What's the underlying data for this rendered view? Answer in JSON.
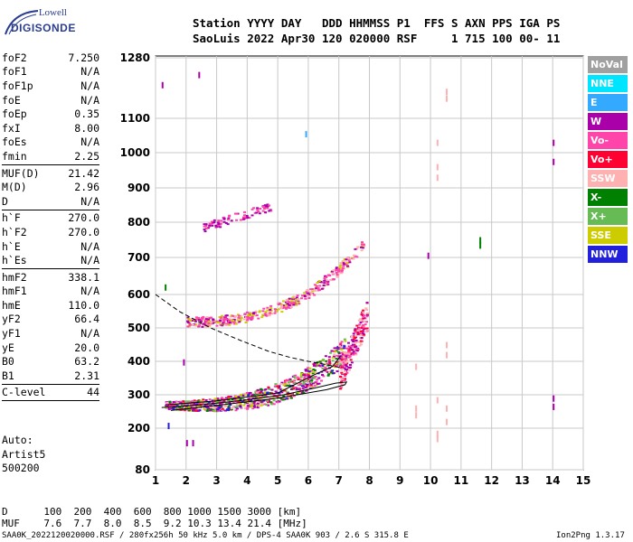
{
  "logo": {
    "top": "Lowell",
    "main": "DIGISONDE"
  },
  "header": {
    "line1": "Station YYYY DAY   DDD HHMMSS P1  FFS S AXN PPS IGA PS",
    "line2": "SaoLuis 2022 Apr30 120 020000 RSF     1 715 100 00- 11"
  },
  "params": [
    {
      "name": "foF2",
      "value": "7.250"
    },
    {
      "name": "foF1",
      "value": "N/A"
    },
    {
      "name": "foF1p",
      "value": "N/A"
    },
    {
      "name": "foE",
      "value": "N/A"
    },
    {
      "name": "foEp",
      "value": "0.35"
    },
    {
      "name": "fxI",
      "value": "8.00"
    },
    {
      "name": "foEs",
      "value": "N/A"
    },
    {
      "name": "fmin",
      "value": "2.25"
    },
    {
      "sep": true
    },
    {
      "name": "MUF(D)",
      "value": "21.42"
    },
    {
      "name": "M(D)",
      "value": "2.96"
    },
    {
      "name": "D",
      "value": "N/A"
    },
    {
      "sep": true
    },
    {
      "name": "h`F",
      "value": "270.0"
    },
    {
      "name": "h`F2",
      "value": "270.0"
    },
    {
      "name": "h`E",
      "value": "N/A"
    },
    {
      "name": "h`Es",
      "value": "N/A"
    },
    {
      "sep": true
    },
    {
      "name": "hmF2",
      "value": "338.1"
    },
    {
      "name": "hmF1",
      "value": "N/A"
    },
    {
      "name": "hmE",
      "value": "110.0"
    },
    {
      "name": "yF2",
      "value": "66.4"
    },
    {
      "name": "yF1",
      "value": "N/A"
    },
    {
      "name": "yE",
      "value": "20.0"
    },
    {
      "name": "B0",
      "value": "63.2"
    },
    {
      "name": "B1",
      "value": "2.31"
    },
    {
      "sep": true
    },
    {
      "name": "C-level",
      "value": "44"
    },
    {
      "sep": true
    }
  ],
  "auto": {
    "l1": "Auto:",
    "l2": "Artist5",
    "l3": "500200"
  },
  "legend": [
    {
      "label": "NoVal",
      "color": "#a0a0a0"
    },
    {
      "label": "NNE",
      "color": "#00e5ff"
    },
    {
      "label": "E",
      "color": "#33aaff"
    },
    {
      "label": "W",
      "color": "#aa00aa"
    },
    {
      "label": "Vo-",
      "color": "#ff44aa"
    },
    {
      "label": "Vo+",
      "color": "#ff0033"
    },
    {
      "label": "SSW",
      "color": "#ffb0b0"
    },
    {
      "label": "X-",
      "color": "#008000"
    },
    {
      "label": "X+",
      "color": "#66bb55"
    },
    {
      "label": "SSE",
      "color": "#cccc00"
    },
    {
      "label": "NNW",
      "color": "#2020dd"
    }
  ],
  "footer": {
    "d_line": "D      100  200  400  600  800 1000 1500 3000 [km]",
    "muf_line": "MUF    7.6  7.7  8.0  8.5  9.2 10.3 13.4 21.4 [MHz]",
    "file_line": "SAA0K_2022120020000.RSF / 280fx256h 50 kHz 5.0 km / DPS-4 SAA0K 903 / 2.6 S 315.8 E",
    "version": "Ion2Png 1.3.17"
  },
  "chart_data": {
    "type": "scatter",
    "x_ticks": [
      1,
      2,
      3,
      4,
      5,
      6,
      7,
      8,
      9,
      10,
      11,
      12,
      13,
      14,
      15
    ],
    "y_ticks": [
      80,
      200,
      300,
      400,
      500,
      600,
      700,
      800,
      900,
      1000,
      1100,
      1280
    ],
    "xlim": [
      1,
      15
    ],
    "ylim": [
      80,
      1280
    ],
    "grid": true,
    "series": [
      {
        "name": "W",
        "color": "#aa00aa",
        "points": [
          [
            2.4,
            1230
          ],
          [
            1.2,
            1200
          ],
          [
            14,
            1030
          ],
          [
            14,
            975
          ],
          [
            9.9,
            706
          ],
          [
            14,
            290
          ],
          [
            14,
            265
          ],
          [
            2.0,
            158
          ],
          [
            2.2,
            158
          ],
          [
            1.9,
            398
          ]
        ]
      },
      {
        "name": "E",
        "color": "#33aaff",
        "points": [
          [
            5.9,
            1055
          ]
        ]
      },
      {
        "name": "X-",
        "color": "#008000",
        "points": [
          [
            11.6,
            750
          ],
          [
            11.6,
            735
          ],
          [
            1.3,
            620
          ]
        ]
      },
      {
        "name": "NNW",
        "color": "#2020dd",
        "points": [
          [
            1.4,
            208
          ]
        ]
      },
      {
        "name": "SSW",
        "color": "#ffb0b0",
        "points": [
          [
            10.5,
            1180
          ],
          [
            10.5,
            1160
          ],
          [
            10.2,
            1030
          ],
          [
            10.2,
            960
          ],
          [
            10.2,
            930
          ],
          [
            10.5,
            450
          ],
          [
            10.5,
            420
          ],
          [
            9.5,
            385
          ],
          [
            9.5,
            260
          ],
          [
            9.5,
            240
          ],
          [
            10.2,
            285
          ],
          [
            10.5,
            260
          ],
          [
            10.5,
            220
          ],
          [
            10.2,
            185
          ],
          [
            10.2,
            170
          ]
        ]
      }
    ],
    "traces": [
      {
        "name": "profile",
        "style": "solid",
        "points": [
          [
            1.2,
            262
          ],
          [
            2.5,
            270
          ],
          [
            4,
            285
          ],
          [
            5.2,
            300
          ],
          [
            6.2,
            320
          ],
          [
            6.9,
            335
          ],
          [
            7.25,
            338
          ],
          [
            7.2,
            330
          ],
          [
            6.6,
            315
          ],
          [
            5,
            290
          ],
          [
            3,
            268
          ],
          [
            1.5,
            253
          ]
        ]
      },
      {
        "name": "topside",
        "style": "dashed",
        "points": [
          [
            1.0,
            600
          ],
          [
            1.8,
            548
          ],
          [
            2.8,
            500
          ],
          [
            3.8,
            462
          ],
          [
            4.7,
            430
          ],
          [
            5.4,
            412
          ],
          [
            6.0,
            400
          ],
          [
            6.6,
            390
          ],
          [
            7.1,
            380
          ]
        ]
      },
      {
        "name": "trace",
        "style": "solid",
        "points": [
          [
            1.4,
            270
          ],
          [
            3,
            282
          ],
          [
            5,
            305
          ],
          [
            6.2,
            360
          ],
          [
            6.8,
            385
          ],
          [
            7.05,
            415
          ]
        ]
      }
    ]
  }
}
